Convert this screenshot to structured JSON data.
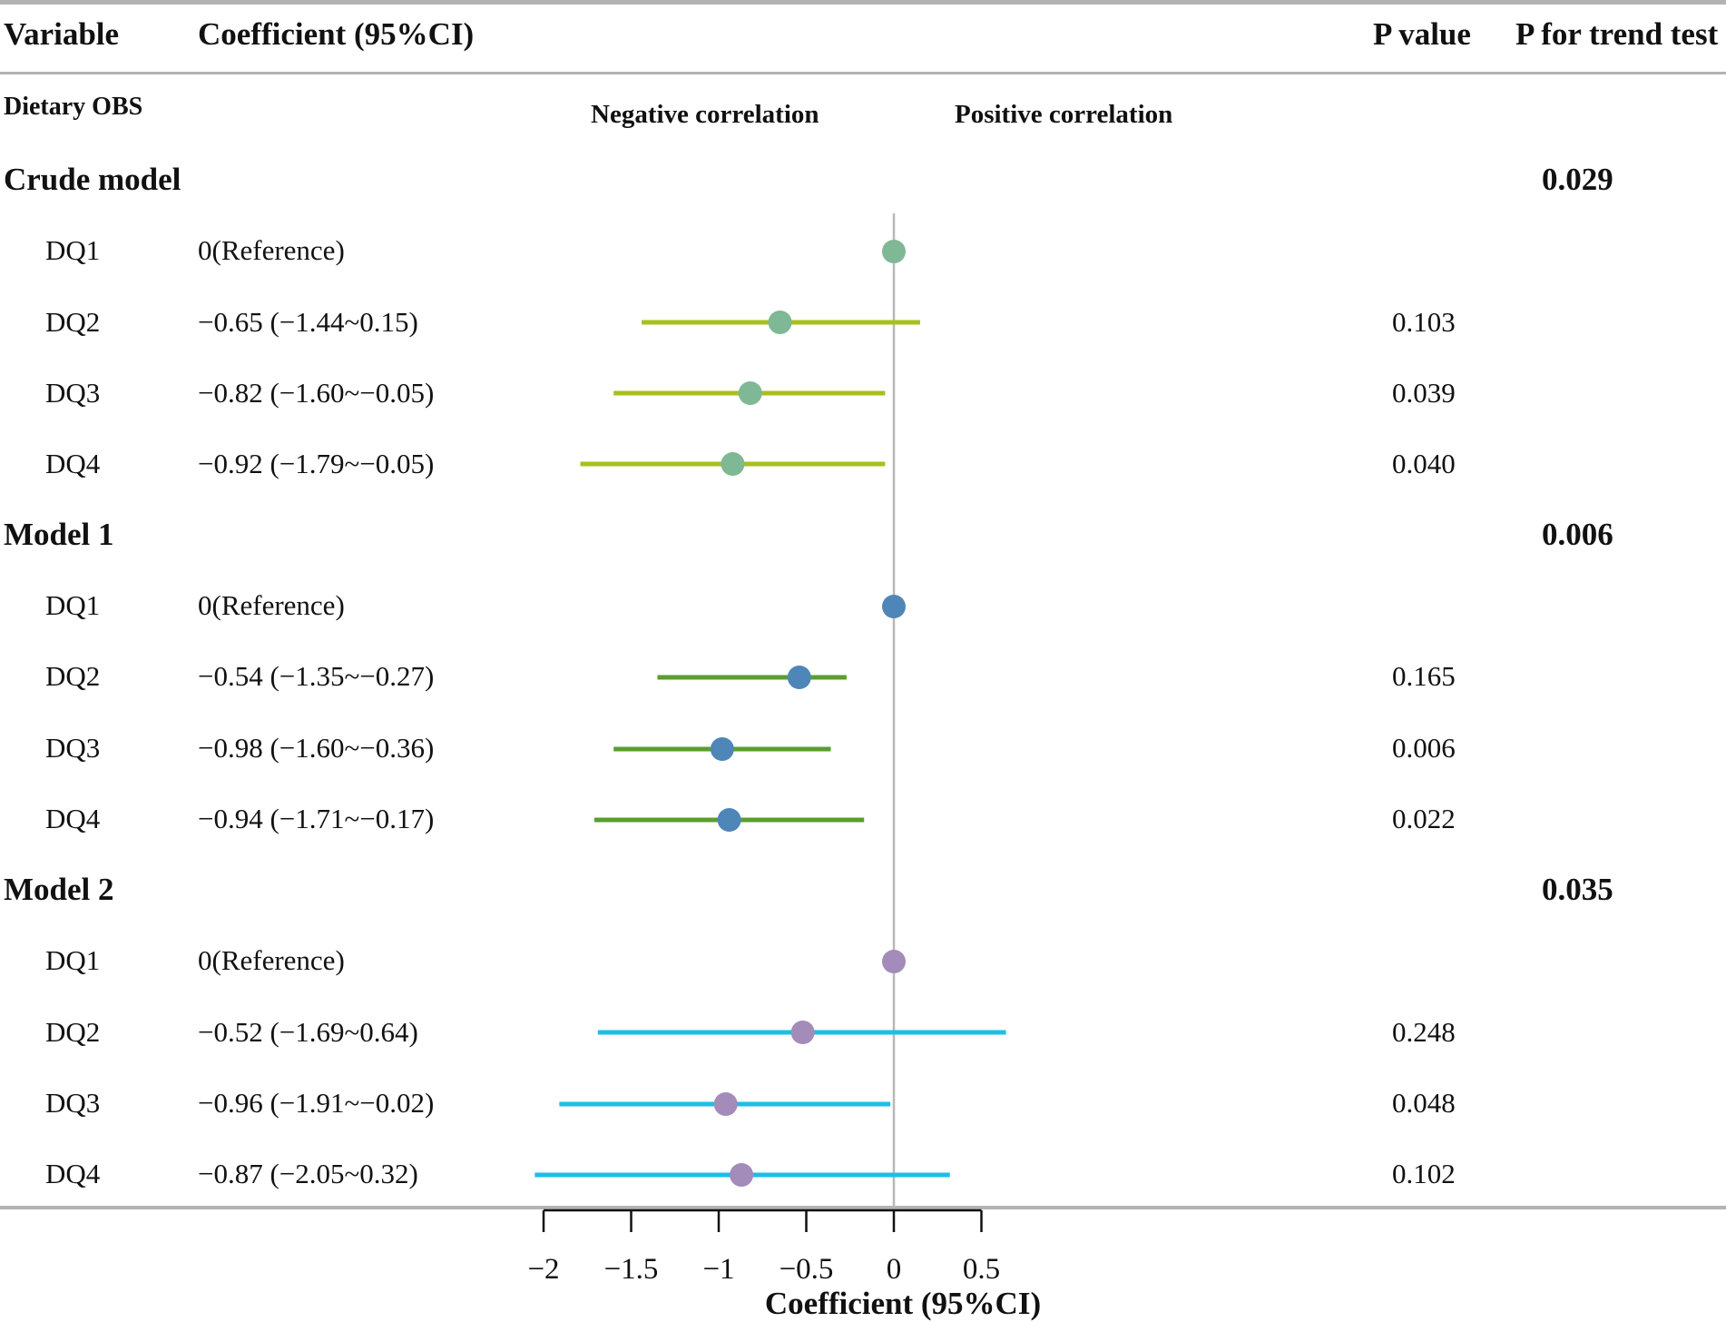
{
  "headers": {
    "variable": "Variable",
    "coefficient": "Coefficient (95%CI)",
    "p_value": "P value",
    "p_trend": "P for trend test"
  },
  "subheader": {
    "label": "Dietary OBS",
    "negative": "Negative correlation",
    "positive": "Positive correlation"
  },
  "groups": [
    {
      "name": "Crude model",
      "trend_p": "0.029",
      "ci_color": "#a8bf1e",
      "dot_color": "#7fb894",
      "rows": [
        {
          "var": "DQ1",
          "coef_text": "0(Reference)",
          "p": ""
        },
        {
          "var": "DQ2",
          "coef_text": "−0.65 (−1.44~0.15)",
          "p": "0.103"
        },
        {
          "var": "DQ3",
          "coef_text": "−0.82 (−1.60~−0.05)",
          "p": "0.039"
        },
        {
          "var": "DQ4",
          "coef_text": "−0.92 (−1.79~−0.05)",
          "p": "0.040"
        }
      ]
    },
    {
      "name": "Model 1",
      "trend_p": "0.006",
      "ci_color": "#5a9e2e",
      "dot_color": "#4f86b8",
      "rows": [
        {
          "var": "DQ1",
          "coef_text": "0(Reference)",
          "p": ""
        },
        {
          "var": "DQ2",
          "coef_text": "−0.54 (−1.35~−0.27)",
          "p": "0.165"
        },
        {
          "var": "DQ3",
          "coef_text": "−0.98 (−1.60~−0.36)",
          "p": "0.006"
        },
        {
          "var": "DQ4",
          "coef_text": "−0.94 (−1.71~−0.17)",
          "p": "0.022"
        }
      ]
    },
    {
      "name": "Model 2",
      "trend_p": "0.035",
      "ci_color": "#1ebde8",
      "dot_color": "#a38bba",
      "rows": [
        {
          "var": "DQ1",
          "coef_text": "0(Reference)",
          "p": ""
        },
        {
          "var": "DQ2",
          "coef_text": "−0.52 (−1.69~0.64)",
          "p": "0.248"
        },
        {
          "var": "DQ3",
          "coef_text": "−0.96 (−1.91~−0.02)",
          "p": "0.048"
        },
        {
          "var": "DQ4",
          "coef_text": "−0.87 (−2.05~0.32)",
          "p": "0.102"
        }
      ]
    }
  ],
  "chart_data": {
    "type": "forest",
    "title": "",
    "xlabel": "Coefficient (95%CI)",
    "xlim": [
      -2,
      0.5
    ],
    "xticks": [
      -2,
      -1.5,
      -1,
      -0.5,
      0,
      0.5
    ],
    "xtick_labels": [
      "−2",
      "−1.5",
      "−1",
      "−0.5",
      "0",
      "0.5"
    ],
    "reference_line": 0,
    "series": [
      {
        "name": "Crude model",
        "points": [
          {
            "label": "DQ1",
            "est": 0,
            "lo": null,
            "hi": null
          },
          {
            "label": "DQ2",
            "est": -0.65,
            "lo": -1.44,
            "hi": 0.15
          },
          {
            "label": "DQ3",
            "est": -0.82,
            "lo": -1.6,
            "hi": -0.05
          },
          {
            "label": "DQ4",
            "est": -0.92,
            "lo": -1.79,
            "hi": -0.05
          }
        ]
      },
      {
        "name": "Model 1",
        "points": [
          {
            "label": "DQ1",
            "est": 0,
            "lo": null,
            "hi": null
          },
          {
            "label": "DQ2",
            "est": -0.54,
            "lo": -1.35,
            "hi": -0.27
          },
          {
            "label": "DQ3",
            "est": -0.98,
            "lo": -1.6,
            "hi": -0.36
          },
          {
            "label": "DQ4",
            "est": -0.94,
            "lo": -1.71,
            "hi": -0.17
          }
        ]
      },
      {
        "name": "Model 2",
        "points": [
          {
            "label": "DQ1",
            "est": 0,
            "lo": null,
            "hi": null
          },
          {
            "label": "DQ2",
            "est": -0.52,
            "lo": -1.69,
            "hi": 0.64
          },
          {
            "label": "DQ3",
            "est": -0.96,
            "lo": -1.91,
            "hi": -0.02
          },
          {
            "label": "DQ4",
            "est": -0.87,
            "lo": -2.05,
            "hi": 0.32
          }
        ]
      }
    ]
  }
}
